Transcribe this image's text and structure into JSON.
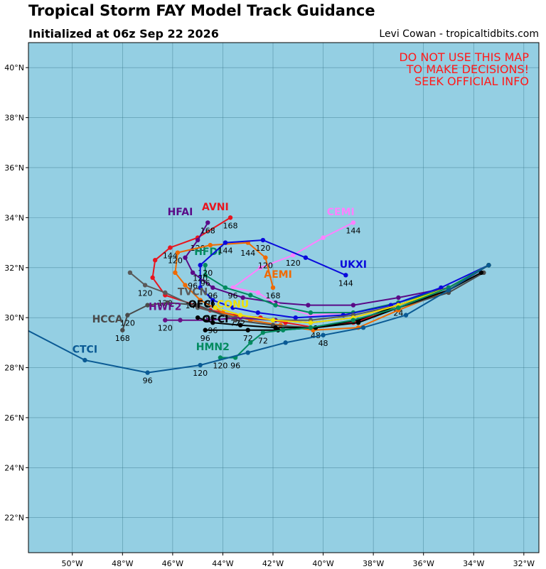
{
  "header": {
    "title": "Tropical Storm FAY Model Track Guidance",
    "subtitle": "Initialized at 06z Sep 22 2026",
    "credit": "Levi Cowan - tropicaltidbits.com"
  },
  "warning": {
    "line1": "DO NOT USE THIS MAP",
    "line2": "TO MAKE DECISIONS!",
    "line3": "SEEK OFFICIAL INFO",
    "color": "#ff1a1a"
  },
  "map": {
    "ocean_color": "#94cfe3",
    "grid_color": "#3d7a8e",
    "lon_range": [
      -51.75,
      -31.4
    ],
    "lat_range": [
      20.6,
      41
    ],
    "lon_ticks": [
      -50,
      -48,
      -46,
      -44,
      -42,
      -40,
      -38,
      -36,
      -34,
      -32
    ],
    "lon_tick_labels": [
      "50°W",
      "48°W",
      "46°W",
      "44°W",
      "42°W",
      "40°W",
      "38°W",
      "36°W",
      "34°W",
      "32°W"
    ],
    "lat_ticks": [
      22,
      24,
      26,
      28,
      30,
      32,
      34,
      36,
      38,
      40
    ],
    "lat_tick_labels": [
      "22°N",
      "24°N",
      "26°N",
      "28°N",
      "30°N",
      "32°N",
      "34°N",
      "36°N",
      "38°N",
      "40°N"
    ]
  },
  "tracks": [
    {
      "name": "AVNI",
      "color": "#e8141e",
      "label_lon": -44.3,
      "label_lat": 34.3,
      "points": [
        [
          -33.4,
          32.1
        ],
        [
          -35,
          31.1
        ],
        [
          -37,
          30.4
        ],
        [
          -38.8,
          29.8
        ],
        [
          -40.3,
          29.6
        ],
        [
          -41.5,
          29.8
        ],
        [
          -42.5,
          30.0
        ],
        [
          -43.5,
          30.1
        ],
        [
          -44.5,
          30.3
        ],
        [
          -46.3,
          30.9
        ],
        [
          -46.8,
          31.6
        ],
        [
          -46.7,
          32.3
        ],
        [
          -46.1,
          32.8
        ],
        [
          -45.0,
          33.2
        ],
        [
          -43.7,
          34.0
        ]
      ],
      "hour_labels": [
        {
          "text": "24",
          "lon": -37.0,
          "lat": 30.5
        },
        {
          "text": "48",
          "lon": -40.3,
          "lat": 29.6
        },
        {
          "text": "72",
          "lon": -43.5,
          "lat": 30.1
        },
        {
          "text": "96",
          "lon": -44.5,
          "lat": 30.3
        },
        {
          "text": "120",
          "lon": -46.3,
          "lat": 30.9
        },
        {
          "text": "144",
          "lon": -46.1,
          "lat": 32.8
        },
        {
          "text": "168",
          "lon": -43.7,
          "lat": 34.0
        }
      ]
    },
    {
      "name": "HFAI",
      "color": "#5a0a87",
      "label_lon": -45.7,
      "label_lat": 34.1,
      "points": [
        [
          -33.4,
          32.1
        ],
        [
          -35,
          31.2
        ],
        [
          -37,
          30.8
        ],
        [
          -38.8,
          30.5
        ],
        [
          -40.6,
          30.5
        ],
        [
          -41.9,
          30.6
        ],
        [
          -43.2,
          30.8
        ],
        [
          -44.4,
          31.2
        ],
        [
          -45.2,
          31.8
        ],
        [
          -45.5,
          32.4
        ],
        [
          -45.0,
          33.1
        ],
        [
          -44.6,
          33.8
        ]
      ],
      "hour_labels": [
        {
          "text": "96",
          "lon": -45.2,
          "lat": 31.6
        },
        {
          "text": "120",
          "lon": -45.0,
          "lat": 33.1
        },
        {
          "text": "168",
          "lon": -44.6,
          "lat": 33.8
        }
      ]
    },
    {
      "name": "CEMI",
      "color": "#ff80ff",
      "label_lon": -39.3,
      "label_lat": 34.1,
      "points": [
        [
          -33.4,
          32.1
        ],
        [
          -35,
          31.2
        ],
        [
          -37,
          30.6
        ],
        [
          -38.8,
          30.2
        ],
        [
          -40.5,
          30.1
        ],
        [
          -41.8,
          30.5
        ],
        [
          -42.6,
          31.0
        ],
        [
          -43.6,
          31.2
        ],
        [
          -42.5,
          32.0
        ],
        [
          -41.2,
          32.5
        ],
        [
          -40.0,
          33.2
        ],
        [
          -38.8,
          33.8
        ]
      ],
      "hour_labels": [
        {
          "text": "96",
          "lon": -43.6,
          "lat": 31.2
        },
        {
          "text": "120",
          "lon": -41.2,
          "lat": 32.5
        },
        {
          "text": "144",
          "lon": -38.8,
          "lat": 33.8
        }
      ]
    },
    {
      "name": "HFDI",
      "color": "#008a5e",
      "label_lon": -44.6,
      "label_lat": 32.5,
      "points": [
        [
          -33.4,
          32.1
        ],
        [
          -35,
          31.2
        ],
        [
          -37,
          30.6
        ],
        [
          -38.8,
          30.2
        ],
        [
          -40.5,
          30.2
        ],
        [
          -41.9,
          30.5
        ],
        [
          -42.9,
          30.9
        ],
        [
          -43.9,
          31.2
        ],
        [
          -44.7,
          31.7
        ],
        [
          -44.7,
          32.1
        ]
      ],
      "hour_labels": [
        {
          "text": "96",
          "lon": -44.7,
          "lat": 31.7
        },
        {
          "text": "120",
          "lon": -44.7,
          "lat": 32.1
        }
      ]
    },
    {
      "name": "AEMI",
      "color": "#f06a00",
      "label_lon": -41.8,
      "label_lat": 31.6,
      "points": [
        [
          -33.4,
          32.1
        ],
        [
          -35,
          31.1
        ],
        [
          -37,
          30.3
        ],
        [
          -38.6,
          29.6
        ],
        [
          -40.4,
          29.5
        ],
        [
          -41.7,
          29.7
        ],
        [
          -42.9,
          29.9
        ],
        [
          -44.0,
          30.2
        ],
        [
          -44.9,
          30.7
        ],
        [
          -45.5,
          31.3
        ],
        [
          -45.9,
          31.8
        ],
        [
          -45.8,
          32.6
        ],
        [
          -44.5,
          32.9
        ],
        [
          -43.0,
          33.0
        ],
        [
          -42.3,
          32.4
        ],
        [
          -42.0,
          31.2
        ]
      ],
      "hour_labels": [
        {
          "text": "96",
          "lon": -44.5,
          "lat": 30.9
        },
        {
          "text": "120",
          "lon": -45.9,
          "lat": 32.6
        },
        {
          "text": "144",
          "lon": -43.0,
          "lat": 32.9
        },
        {
          "text": "120",
          "lon": -42.3,
          "lat": 32.4
        },
        {
          "text": "168",
          "lon": -42.0,
          "lat": 31.2
        }
      ]
    },
    {
      "name": "UKXI",
      "color": "#0a0adc",
      "label_lon": -38.8,
      "label_lat": 32.0,
      "points": [
        [
          -33.4,
          32.1
        ],
        [
          -35.3,
          31.2
        ],
        [
          -37.3,
          30.5
        ],
        [
          -39.2,
          30.1
        ],
        [
          -41.1,
          30.0
        ],
        [
          -42.6,
          30.2
        ],
        [
          -43.6,
          30.4
        ],
        [
          -44.4,
          30.7
        ],
        [
          -44.9,
          31.2
        ],
        [
          -44.9,
          32.1
        ],
        [
          -43.9,
          33.0
        ],
        [
          -42.4,
          33.1
        ],
        [
          -40.7,
          32.4
        ],
        [
          -39.1,
          31.7
        ]
      ],
      "hour_labels": [
        {
          "text": "96",
          "lon": -44.4,
          "lat": 31.2
        },
        {
          "text": "120",
          "lon": -44.9,
          "lat": 31.9
        },
        {
          "text": "144",
          "lon": -43.9,
          "lat": 33.0
        },
        {
          "text": "120",
          "lon": -42.4,
          "lat": 33.1
        },
        {
          "text": "144",
          "lon": -39.1,
          "lat": 31.7
        }
      ]
    },
    {
      "name": "TVCN",
      "color": "#5a5a5a",
      "label_lon": -45.2,
      "label_lat": 30.9,
      "points": [
        [
          -33.4,
          32.1
        ],
        [
          -35,
          31.1
        ],
        [
          -37,
          30.5
        ],
        [
          -38.8,
          30.1
        ],
        [
          -40.5,
          29.9
        ],
        [
          -42.0,
          29.9
        ],
        [
          -43.5,
          30.0
        ],
        [
          -45.0,
          30.4
        ],
        [
          -46.3,
          31.0
        ],
        [
          -47.1,
          31.3
        ],
        [
          -47.7,
          31.8
        ]
      ],
      "hour_labels": [
        {
          "text": "120",
          "lon": -47.1,
          "lat": 31.3
        },
        {
          "text": "144",
          "lon": -45.2,
          "lat": 30.8
        }
      ]
    },
    {
      "name": "HCCA",
      "color": "#4a4a4a",
      "label_lon": -48.6,
      "label_lat": 29.8,
      "points": [
        [
          -33.6,
          31.8
        ],
        [
          -35,
          31.0
        ],
        [
          -37,
          30.4
        ],
        [
          -38.8,
          29.9
        ],
        [
          -40.5,
          29.6
        ],
        [
          -42.0,
          29.7
        ],
        [
          -43.5,
          29.9
        ],
        [
          -45.0,
          30.5
        ],
        [
          -46.2,
          30.6
        ],
        [
          -47.0,
          30.5
        ],
        [
          -47.8,
          30.1
        ],
        [
          -48.0,
          29.5
        ]
      ],
      "hour_labels": [
        {
          "text": "120",
          "lon": -47.8,
          "lat": 30.1
        },
        {
          "text": "168",
          "lon": -48.0,
          "lat": 29.5
        }
      ]
    },
    {
      "name": "HWF2",
      "color": "#6a1087",
      "label_lon": -46.3,
      "label_lat": 30.3,
      "points": [
        [
          -33.4,
          32.1
        ],
        [
          -35,
          31.2
        ],
        [
          -37,
          30.5
        ],
        [
          -38.8,
          30.0
        ],
        [
          -40.5,
          29.8
        ],
        [
          -41.9,
          29.9
        ],
        [
          -43.3,
          30.0
        ],
        [
          -44.6,
          29.9
        ],
        [
          -45.7,
          29.9
        ],
        [
          -46.3,
          29.9
        ]
      ],
      "hour_labels": [
        {
          "text": "120",
          "lon": -46.3,
          "lat": 29.9
        }
      ]
    },
    {
      "name": "OFCL",
      "color": "#000000",
      "label_lon": -44.8,
      "label_lat": 30.4,
      "points": [
        [
          -33.4,
          32.1
        ],
        [
          -35,
          31.2
        ],
        [
          -37,
          30.5
        ],
        [
          -38.6,
          29.9
        ],
        [
          -40.3,
          29.6
        ],
        [
          -41.9,
          29.6
        ],
        [
          -43.3,
          29.7
        ],
        [
          -44.4,
          29.8
        ],
        [
          -45.0,
          30.0
        ]
      ],
      "hour_labels": [
        {
          "text": "96",
          "lon": -44.4,
          "lat": 29.8
        }
      ]
    },
    {
      "name": "OFCI",
      "color": "#000000",
      "label_lon": -44.3,
      "label_lat": 29.8,
      "points": [
        [
          -33.7,
          31.8
        ],
        [
          -35,
          31.1
        ],
        [
          -37,
          30.4
        ],
        [
          -38.6,
          29.8
        ],
        [
          -40.3,
          29.6
        ],
        [
          -41.8,
          29.5
        ],
        [
          -43.0,
          29.5
        ],
        [
          -44.7,
          29.5
        ]
      ],
      "hour_labels": [
        {
          "text": "72",
          "lon": -43.0,
          "lat": 29.5
        },
        {
          "text": "96",
          "lon": -44.7,
          "lat": 29.5
        }
      ]
    },
    {
      "name": "CONU",
      "color": "#f0e000",
      "label_lon": -43.6,
      "label_lat": 30.4,
      "points": [
        [
          -33.4,
          32.1
        ],
        [
          -35,
          31.2
        ],
        [
          -37,
          30.5
        ],
        [
          -38.8,
          30.0
        ],
        [
          -40.5,
          29.8
        ],
        [
          -42.0,
          29.9
        ],
        [
          -43.3,
          30.1
        ],
        [
          -44.3,
          30.4
        ]
      ],
      "hour_labels": [
        {
          "text": "72",
          "lon": -43.3,
          "lat": 30.1
        }
      ]
    },
    {
      "name": "HMN2",
      "color": "#008a5e",
      "label_lon": -44.4,
      "label_lat": 28.7,
      "points": [
        [
          -33.4,
          32.1
        ],
        [
          -35,
          31.2
        ],
        [
          -37,
          30.4
        ],
        [
          -38.8,
          29.9
        ],
        [
          -40.5,
          29.6
        ],
        [
          -41.6,
          29.5
        ],
        [
          -42.4,
          29.4
        ],
        [
          -42.9,
          29.0
        ],
        [
          -43.5,
          28.4
        ],
        [
          -44.1,
          28.4
        ]
      ],
      "hour_labels": [
        {
          "text": "72",
          "lon": -42.4,
          "lat": 29.4
        },
        {
          "text": "96",
          "lon": -43.5,
          "lat": 28.4
        },
        {
          "text": "120",
          "lon": -44.1,
          "lat": 28.4
        }
      ]
    },
    {
      "name": "CTCI",
      "color": "#0a5a94",
      "label_lon": -49.5,
      "label_lat": 28.6,
      "points": [
        [
          -33.4,
          32.1
        ],
        [
          -35,
          31.1
        ],
        [
          -36.7,
          30.1
        ],
        [
          -38.4,
          29.6
        ],
        [
          -40.0,
          29.3
        ],
        [
          -41.5,
          29.0
        ],
        [
          -43.0,
          28.6
        ],
        [
          -44.9,
          28.1
        ],
        [
          -47.0,
          27.8
        ],
        [
          -49.5,
          28.3
        ],
        [
          -52.0,
          29.6
        ]
      ],
      "hour_labels": [
        {
          "text": "48",
          "lon": -40.0,
          "lat": 29.3
        },
        {
          "text": "96",
          "lon": -47.0,
          "lat": 27.8
        },
        {
          "text": "120",
          "lon": -44.9,
          "lat": 28.1
        }
      ]
    }
  ]
}
